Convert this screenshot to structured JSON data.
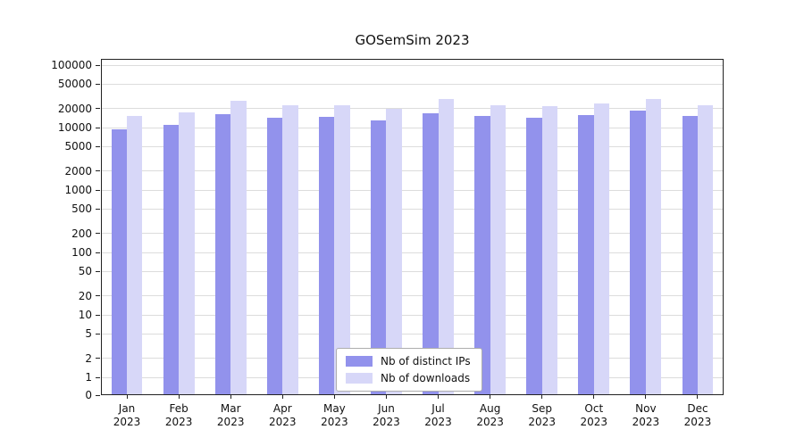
{
  "chart_data": {
    "type": "bar",
    "title": "GOSemSim 2023",
    "x_months": [
      "Jan",
      "Feb",
      "Mar",
      "Apr",
      "May",
      "Jun",
      "Jul",
      "Aug",
      "Sep",
      "Oct",
      "Nov",
      "Dec"
    ],
    "x_year": "2023",
    "categories": [
      "Jan 2023",
      "Feb 2023",
      "Mar 2023",
      "Apr 2023",
      "May 2023",
      "Jun 2023",
      "Jul 2023",
      "Aug 2023",
      "Sep 2023",
      "Oct 2023",
      "Nov 2023",
      "Dec 2023"
    ],
    "series": [
      {
        "name": "Nb of distinct IPs",
        "color": "#9292ec",
        "values": [
          9500,
          11000,
          16500,
          14500,
          15000,
          13000,
          17000,
          15500,
          14500,
          16000,
          18500,
          15500
        ]
      },
      {
        "name": "Nb of downloads",
        "color": "#d7d7f8",
        "values": [
          15500,
          17500,
          26500,
          22500,
          23000,
          20000,
          28500,
          23000,
          22000,
          24000,
          28500,
          23000
        ]
      }
    ],
    "yscale": "symlog",
    "ylim": [
      0,
      100000
    ],
    "yticks": [
      0,
      1,
      2,
      5,
      10,
      20,
      50,
      100,
      200,
      500,
      1000,
      2000,
      5000,
      10000,
      20000,
      50000,
      100000
    ],
    "xlabel": "",
    "ylabel": "",
    "grid": "horizontal",
    "gridline_color": "#dcdcdc",
    "background_color": "#ffffff",
    "legend_position": "lower center"
  }
}
